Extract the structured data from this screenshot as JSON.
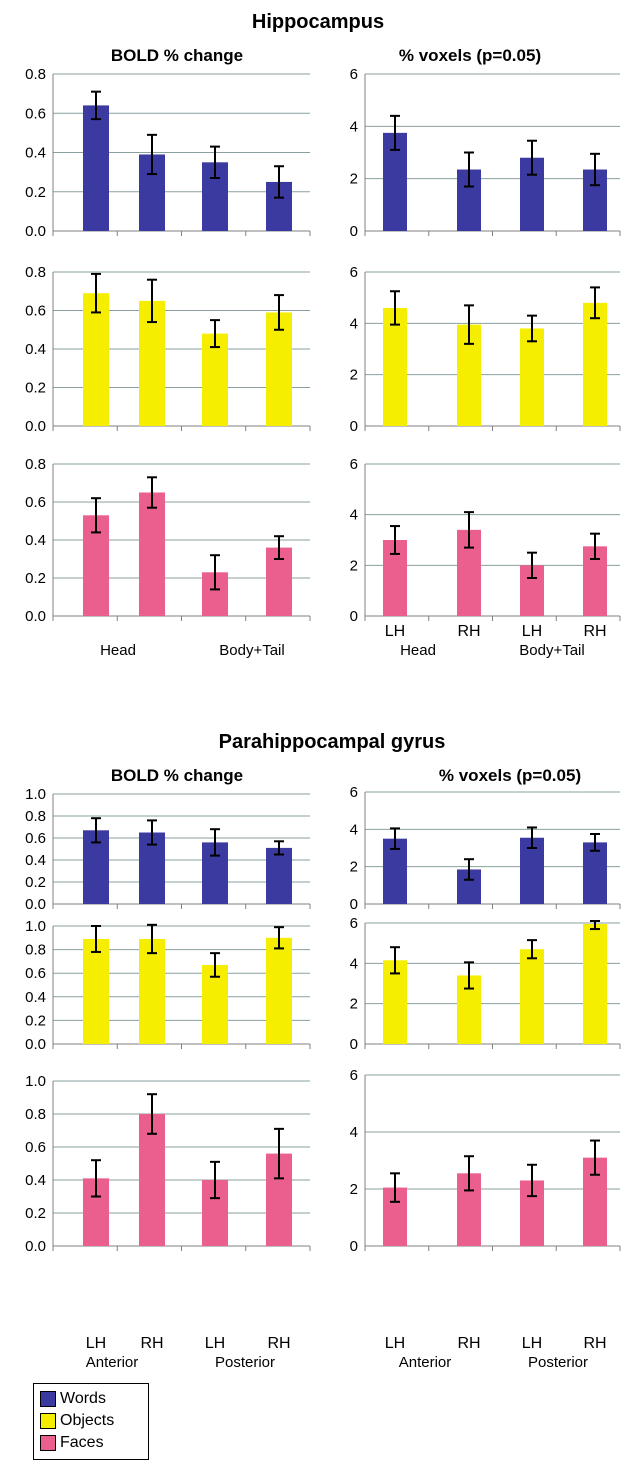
{
  "colors": {
    "words": "#3b3aa0",
    "objects": "#f5ee00",
    "faces": "#ea5f8d",
    "grid": "#8aa0a0",
    "axis": "#808080"
  },
  "sections": [
    {
      "title": "Hippocampus",
      "xgroups": [
        "Head",
        "Body+Tail"
      ]
    },
    {
      "title": "Parahippocampal gyrus",
      "xgroups": [
        "Anterior",
        "Posterior"
      ]
    }
  ],
  "legend": [
    {
      "label": "Words",
      "color": "#3b3aa0"
    },
    {
      "label": "Objects",
      "color": "#f5ee00"
    },
    {
      "label": "Faces",
      "color": "#ea5f8d"
    }
  ],
  "chart_data": [
    {
      "type": "bar",
      "section": "Hippocampus",
      "condition": "Words",
      "title": "BOLD % change",
      "categories": [
        "LH",
        "RH",
        "LH",
        "RH"
      ],
      "values": [
        0.64,
        0.39,
        0.35,
        0.25
      ],
      "errors": [
        0.07,
        0.1,
        0.08,
        0.08
      ],
      "ylim": [
        0,
        0.8
      ],
      "yticks": [
        "0.0",
        "0.2",
        "0.4",
        "0.6",
        "0.8"
      ],
      "grid": true
    },
    {
      "type": "bar",
      "section": "Hippocampus",
      "condition": "Words",
      "title": "% voxels (p=0.05)",
      "categories": [
        "LH",
        "RH",
        "LH",
        "RH"
      ],
      "values": [
        3.75,
        2.35,
        2.8,
        2.35
      ],
      "errors": [
        0.65,
        0.65,
        0.65,
        0.6
      ],
      "ylim": [
        0,
        6
      ],
      "yticks": [
        "0",
        "2",
        "4",
        "6"
      ],
      "grid": true
    },
    {
      "type": "bar",
      "section": "Hippocampus",
      "condition": "Objects",
      "title": "",
      "categories": [
        "LH",
        "RH",
        "LH",
        "RH"
      ],
      "values": [
        0.69,
        0.65,
        0.48,
        0.59
      ],
      "errors": [
        0.1,
        0.11,
        0.07,
        0.09
      ],
      "ylim": [
        0,
        0.8
      ],
      "yticks": [
        "0.0",
        "0.2",
        "0.4",
        "0.6",
        "0.8"
      ],
      "grid": true
    },
    {
      "type": "bar",
      "section": "Hippocampus",
      "condition": "Objects",
      "title": "",
      "categories": [
        "LH",
        "RH",
        "LH",
        "RH"
      ],
      "values": [
        4.6,
        3.95,
        3.8,
        4.8
      ],
      "errors": [
        0.65,
        0.75,
        0.5,
        0.6
      ],
      "ylim": [
        0,
        6
      ],
      "yticks": [
        "0",
        "2",
        "4",
        "6"
      ],
      "grid": true
    },
    {
      "type": "bar",
      "section": "Hippocampus",
      "condition": "Faces",
      "title": "",
      "categories": [
        "LH",
        "RH",
        "LH",
        "RH"
      ],
      "values": [
        0.53,
        0.65,
        0.23,
        0.36
      ],
      "errors": [
        0.09,
        0.08,
        0.09,
        0.06
      ],
      "ylim": [
        0,
        0.8
      ],
      "yticks": [
        "0.0",
        "0.2",
        "0.4",
        "0.6",
        "0.8"
      ],
      "grid": true
    },
    {
      "type": "bar",
      "section": "Hippocampus",
      "condition": "Faces",
      "title": "",
      "categories": [
        "LH",
        "RH",
        "LH",
        "RH"
      ],
      "values": [
        3.0,
        3.4,
        2.0,
        2.75
      ],
      "errors": [
        0.55,
        0.7,
        0.5,
        0.5
      ],
      "ylim": [
        0,
        6
      ],
      "yticks": [
        "0",
        "2",
        "4",
        "6"
      ],
      "grid": true
    },
    {
      "type": "bar",
      "section": "Parahippocampal gyrus",
      "condition": "Words",
      "title": "BOLD % change",
      "categories": [
        "LH",
        "RH",
        "LH",
        "RH"
      ],
      "values": [
        0.67,
        0.65,
        0.56,
        0.51
      ],
      "errors": [
        0.11,
        0.11,
        0.12,
        0.06
      ],
      "ylim": [
        0,
        1.0
      ],
      "yticks": [
        "0.0",
        "0.2",
        "0.4",
        "0.6",
        "0.8",
        "1.0"
      ],
      "grid": true
    },
    {
      "type": "bar",
      "section": "Parahippocampal gyrus",
      "condition": "Words",
      "title": "% voxels (p=0.05)",
      "categories": [
        "LH",
        "RH",
        "LH",
        "RH"
      ],
      "values": [
        3.5,
        1.85,
        3.55,
        3.3
      ],
      "errors": [
        0.55,
        0.55,
        0.55,
        0.45
      ],
      "ylim": [
        0,
        6
      ],
      "yticks": [
        "0",
        "2",
        "4",
        "6"
      ],
      "grid": true
    },
    {
      "type": "bar",
      "section": "Parahippocampal gyrus",
      "condition": "Objects",
      "title": "",
      "categories": [
        "LH",
        "RH",
        "LH",
        "RH"
      ],
      "values": [
        0.89,
        0.89,
        0.67,
        0.9
      ],
      "errors": [
        0.11,
        0.12,
        0.1,
        0.09
      ],
      "ylim": [
        0,
        1.0
      ],
      "yticks": [
        "0.0",
        "0.2",
        "0.4",
        "0.6",
        "0.8",
        "1.0"
      ],
      "grid": true
    },
    {
      "type": "bar",
      "section": "Parahippocampal gyrus",
      "condition": "Objects",
      "title": "",
      "categories": [
        "LH",
        "RH",
        "LH",
        "RH"
      ],
      "values": [
        4.15,
        3.4,
        4.7,
        5.95
      ],
      "errors": [
        0.65,
        0.65,
        0.45,
        0.25
      ],
      "ylim": [
        0,
        6
      ],
      "yticks": [
        "0",
        "2",
        "4",
        "6"
      ],
      "grid": true
    },
    {
      "type": "bar",
      "section": "Parahippocampal gyrus",
      "condition": "Faces",
      "title": "",
      "categories": [
        "LH",
        "RH",
        "LH",
        "RH"
      ],
      "values": [
        0.41,
        0.8,
        0.4,
        0.56
      ],
      "errors": [
        0.11,
        0.12,
        0.11,
        0.15
      ],
      "ylim": [
        0,
        1.0
      ],
      "yticks": [
        "0.0",
        "0.2",
        "0.4",
        "0.6",
        "0.8",
        "1.0"
      ],
      "grid": true
    },
    {
      "type": "bar",
      "section": "Parahippocampal gyrus",
      "condition": "Faces",
      "title": "",
      "categories": [
        "LH",
        "RH",
        "LH",
        "RH"
      ],
      "values": [
        2.05,
        2.55,
        2.3,
        3.1
      ],
      "errors": [
        0.5,
        0.6,
        0.55,
        0.6
      ],
      "ylim": [
        0,
        6
      ],
      "yticks": [
        "0",
        "2",
        "4",
        "6"
      ],
      "grid": true
    }
  ]
}
